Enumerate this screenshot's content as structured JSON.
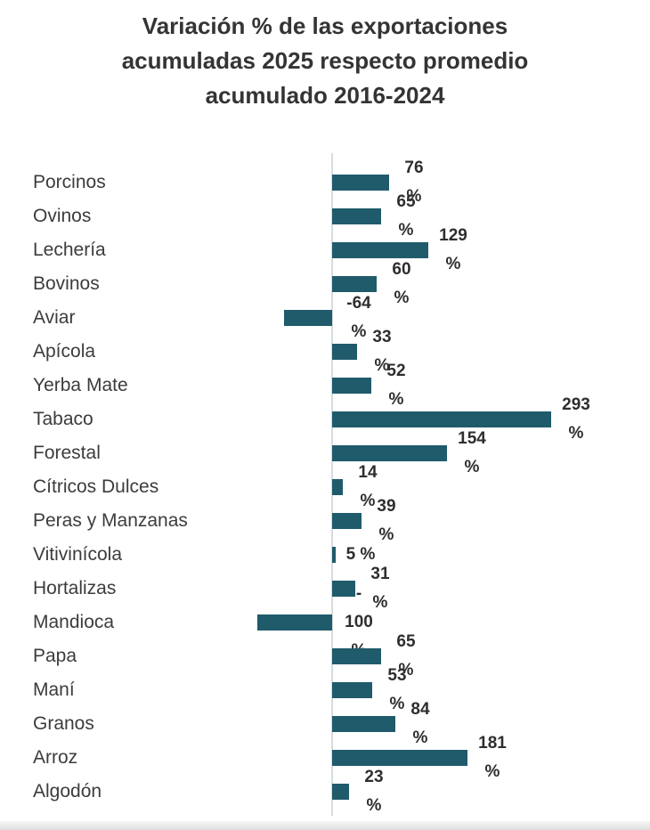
{
  "title": {
    "lines": [
      "Variación % de las exportaciones",
      "acumuladas 2025 respecto promedio",
      "acumulado 2016-2024"
    ]
  },
  "chart_data": {
    "type": "bar",
    "orientation": "horizontal",
    "title": "Variación % de las exportaciones acumuladas 2025 respecto promedio acumulado 2016-2024",
    "unit": "%",
    "xlim": [
      -110,
      300
    ],
    "grid": false,
    "legend": false,
    "bar_color": "#1f5b6b",
    "axis_color": "#d6dcdf",
    "label_color": "#2e2e2e",
    "categories": [
      "Porcinos",
      "Ovinos",
      "Lechería",
      "Bovinos",
      "Aviar",
      "Apícola",
      "Yerba Mate",
      "Tabaco",
      "Forestal",
      "Cítricos Dulces",
      "Peras y Manzanas",
      "Vitivinícola",
      "Hortalizas",
      "Mandioca",
      "Papa",
      "Maní",
      "Granos",
      "Arroz",
      "Algodón"
    ],
    "values": [
      76,
      65,
      129,
      60,
      -64,
      33,
      52,
      293,
      154,
      14,
      39,
      5,
      31,
      -100,
      65,
      53,
      84,
      181,
      23
    ],
    "items": [
      {
        "category": "Porcinos",
        "value": 76,
        "label_lines": [
          "76",
          "%"
        ]
      },
      {
        "category": "Ovinos",
        "value": 65,
        "label_lines": [
          "65",
          "%"
        ]
      },
      {
        "category": "Lechería",
        "value": 129,
        "label_lines": [
          "129",
          "%"
        ]
      },
      {
        "category": "Bovinos",
        "value": 60,
        "label_lines": [
          "60",
          "%"
        ]
      },
      {
        "category": "Aviar",
        "value": -64,
        "label_lines": [
          "-64",
          "%"
        ]
      },
      {
        "category": "Apícola",
        "value": 33,
        "label_lines": [
          "33",
          "%"
        ]
      },
      {
        "category": "Yerba Mate",
        "value": 52,
        "label_lines": [
          "52",
          "%"
        ]
      },
      {
        "category": "Tabaco",
        "value": 293,
        "label_lines": [
          "293",
          "%"
        ]
      },
      {
        "category": "Forestal",
        "value": 154,
        "label_lines": [
          "154",
          "%"
        ]
      },
      {
        "category": "Cítricos Dulces",
        "value": 14,
        "label_lines": [
          "14",
          "%"
        ]
      },
      {
        "category": "Peras y Manzanas",
        "value": 39,
        "label_lines": [
          "39",
          "%"
        ]
      },
      {
        "category": "Vitivinícola",
        "value": 5,
        "label_lines": [
          "5 %"
        ]
      },
      {
        "category": "Hortalizas",
        "value": 31,
        "label_lines": [
          "31",
          "%"
        ]
      },
      {
        "category": "Mandioca",
        "value": -100,
        "label_lines": [
          "-",
          "100",
          "%"
        ]
      },
      {
        "category": "Papa",
        "value": 65,
        "label_lines": [
          "65",
          "%"
        ]
      },
      {
        "category": "Maní",
        "value": 53,
        "label_lines": [
          "53",
          "%"
        ]
      },
      {
        "category": "Granos",
        "value": 84,
        "label_lines": [
          "84",
          "%"
        ]
      },
      {
        "category": "Arroz",
        "value": 181,
        "label_lines": [
          "181",
          "%"
        ]
      },
      {
        "category": "Algodón",
        "value": 23,
        "label_lines": [
          "23",
          "%"
        ]
      }
    ]
  }
}
